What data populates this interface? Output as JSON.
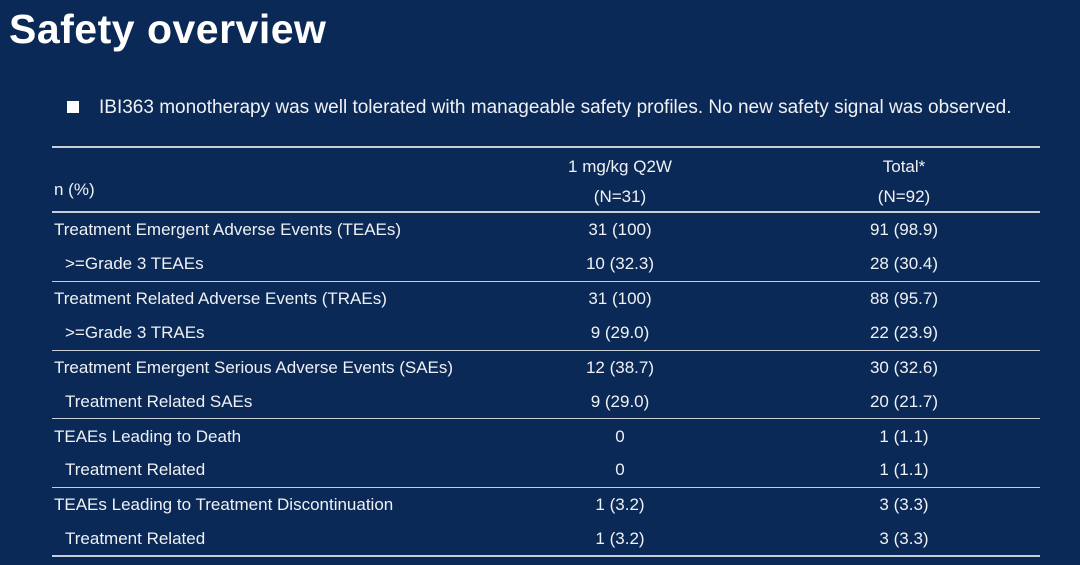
{
  "slide": {
    "title": "Safety overview",
    "bullet_text": "IBI363 monotherapy was well tolerated with manageable safety profiles. No new safety signal was observed."
  },
  "colors": {
    "background": "#0b2956",
    "divider_line": "#c8cdd6",
    "text": "#eff1f4",
    "title_text": "#ffffff"
  },
  "table": {
    "corner_label": "n (%)",
    "columns": [
      {
        "line1": "1 mg/kg Q2W",
        "line2": "(N=31)"
      },
      {
        "line1": "Total*",
        "line2": "(N=92)"
      }
    ],
    "rows": [
      {
        "label": "Treatment Emergent Adverse Events (TEAEs)",
        "q2w": "31 (100)",
        "total": "91 (98.9)"
      },
      {
        "label": ">=Grade 3 TEAEs",
        "q2w": "10 (32.3)",
        "total": "28 (30.4)"
      },
      {
        "label": "Treatment Related Adverse Events (TRAEs)",
        "q2w": "31 (100)",
        "total": "88 (95.7)"
      },
      {
        "label": ">=Grade 3 TRAEs",
        "q2w": "9 (29.0)",
        "total": "22 (23.9)"
      },
      {
        "label": "Treatment Emergent Serious Adverse Events (SAEs)",
        "q2w": "12 (38.7)",
        "total": "30 (32.6)"
      },
      {
        "label": "Treatment Related SAEs",
        "q2w": "9 (29.0)",
        "total": "20 (21.7)"
      },
      {
        "label": "TEAEs Leading to Death",
        "q2w": "0",
        "total": "1 (1.1)"
      },
      {
        "label": "Treatment Related",
        "q2w": "0",
        "total": "1 (1.1)"
      },
      {
        "label": "TEAEs Leading to Treatment Discontinuation",
        "q2w": "1 (3.2)",
        "total": "3 (3.3)"
      },
      {
        "label": "Treatment Related",
        "q2w": "1 (3.2)",
        "total": "3 (3.3)"
      }
    ]
  }
}
